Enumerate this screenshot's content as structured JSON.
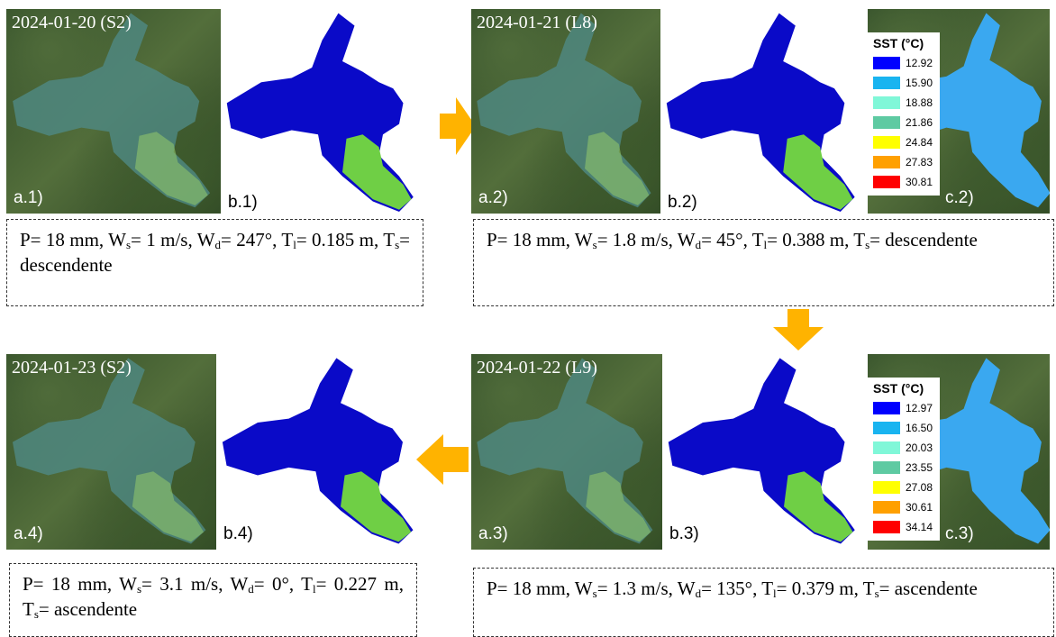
{
  "panels": [
    {
      "date": "2024-01-20 (S2)",
      "image_label": "a.1)",
      "map_label": "b.1)",
      "caption": [
        "P= 18 mm, W",
        "s",
        "= 1 m/s, W",
        "d",
        "= 247°, T",
        "l",
        "= 0.185 m, T",
        "s",
        "= descendente"
      ]
    },
    {
      "date": "2024-01-21 (L8)",
      "image_label": "a.2)",
      "map_label": "b.2)",
      "legend": {
        "title": "SST (°C)",
        "values": [
          "12.92",
          "15.90",
          "18.88",
          "21.86",
          "24.84",
          "27.83",
          "30.81"
        ],
        "label": "c.2)"
      },
      "caption": [
        "P= 18 mm, W",
        "s",
        "= 1.8 m/s, W",
        "d",
        "= 45°, T",
        "l",
        "= 0.388 m, T",
        "s",
        "= descendente"
      ]
    },
    {
      "date": "2024-01-23 (S2)",
      "image_label": "a.4)",
      "map_label": "b.4)",
      "caption": [
        "P= 18 mm, W",
        "s",
        "= 3.1 m/s, W",
        "d",
        "= 0°, T",
        "l",
        "= 0.227 m, T",
        "s",
        "= ascendente"
      ]
    },
    {
      "date": "2024-01-22 (L9)",
      "image_label": "a.3)",
      "map_label": "b.3)",
      "legend": {
        "title": "SST (°C)",
        "values": [
          "12.97",
          "16.50",
          "20.03",
          "23.55",
          "27.08",
          "30.61",
          "34.14"
        ],
        "label": "c.3)"
      },
      "caption": [
        "P= 18 mm, W",
        "s",
        "= 1.3 m/s, W",
        "d",
        "= 135°, T",
        "l",
        "= 0.379 m, T",
        "s",
        "= ascendente"
      ]
    }
  ]
}
